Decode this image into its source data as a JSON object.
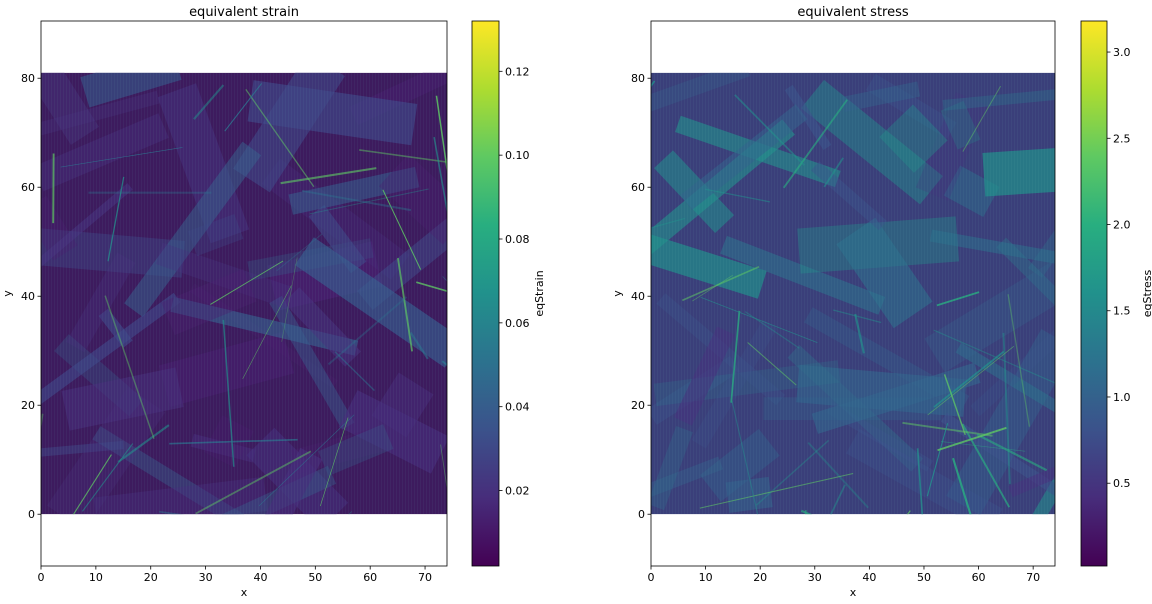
{
  "chart_data": [
    {
      "type": "heatmap",
      "title": "equivalent strain",
      "xlabel": "x",
      "ylabel": "y",
      "xlim": [
        0,
        74
      ],
      "ylim": [
        -9.5,
        90.5
      ],
      "data_extent": {
        "x": [
          0,
          74
        ],
        "y": [
          0,
          81
        ]
      },
      "x_ticks": [
        "0",
        "10",
        "20",
        "30",
        "40",
        "50",
        "60",
        "70"
      ],
      "y_ticks": [
        "0",
        "20",
        "40",
        "60",
        "80"
      ],
      "colormap": "viridis",
      "colorbar": {
        "label": "eqStrain",
        "range": [
          0.002,
          0.132
        ],
        "ticks": [
          "0.02",
          "0.04",
          "0.06",
          "0.08",
          "0.10",
          "0.12"
        ]
      }
    },
    {
      "type": "heatmap",
      "title": "equivalent stress",
      "xlabel": "x",
      "ylabel": "y",
      "xlim": [
        0,
        74
      ],
      "ylim": [
        -9.5,
        90.5
      ],
      "data_extent": {
        "x": [
          0,
          74
        ],
        "y": [
          0,
          81
        ]
      },
      "x_ticks": [
        "0",
        "10",
        "20",
        "30",
        "40",
        "50",
        "60",
        "70"
      ],
      "y_ticks": [
        "0",
        "20",
        "40",
        "60",
        "80"
      ],
      "colormap": "viridis",
      "colorbar": {
        "label": "eqStress",
        "range": [
          0.02,
          3.18
        ],
        "ticks": [
          "0.5",
          "1.0",
          "1.5",
          "2.0",
          "2.5",
          "3.0"
        ]
      }
    }
  ]
}
